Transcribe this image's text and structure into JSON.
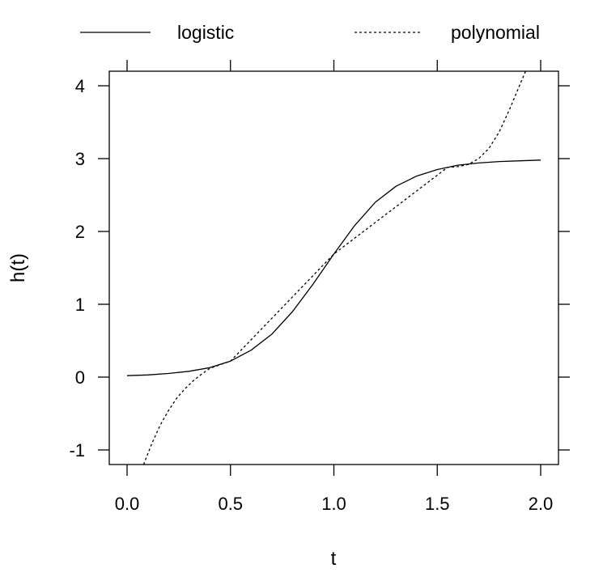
{
  "chart_data": {
    "type": "line",
    "title": "",
    "xlabel": "t",
    "ylabel": "h(t)",
    "xlim": [
      0,
      2
    ],
    "ylim": [
      -1.2,
      4.2
    ],
    "xticks": [
      0,
      0.5,
      1,
      1.5,
      2
    ],
    "xtick_labels": [
      "0.0",
      "0.5",
      "1.0",
      "1.5",
      "2.0"
    ],
    "yticks": [
      -1,
      0,
      1,
      2,
      3,
      4
    ],
    "ytick_labels": [
      "-1",
      "0",
      "1",
      "2",
      "3",
      "4"
    ],
    "grid": false,
    "legend_placement": "top",
    "series": [
      {
        "name": "logistic",
        "style": "solid",
        "color": "#000000",
        "points": [
          [
            0.0,
            0.02
          ],
          [
            0.1,
            0.03
          ],
          [
            0.2,
            0.05
          ],
          [
            0.3,
            0.08
          ],
          [
            0.4,
            0.13
          ],
          [
            0.5,
            0.22
          ],
          [
            0.6,
            0.37
          ],
          [
            0.7,
            0.59
          ],
          [
            0.8,
            0.9
          ],
          [
            0.9,
            1.28
          ],
          [
            1.0,
            1.69
          ],
          [
            1.1,
            2.08
          ],
          [
            1.2,
            2.4
          ],
          [
            1.3,
            2.62
          ],
          [
            1.4,
            2.76
          ],
          [
            1.5,
            2.85
          ],
          [
            1.6,
            2.91
          ],
          [
            1.7,
            2.94
          ],
          [
            1.8,
            2.96
          ],
          [
            1.9,
            2.97
          ],
          [
            2.0,
            2.98
          ]
        ]
      },
      {
        "name": "polynomial",
        "style": "dotted",
        "color": "#000000",
        "points": [
          [
            0.08,
            -1.2
          ],
          [
            0.12,
            -0.91
          ],
          [
            0.16,
            -0.66
          ],
          [
            0.2,
            -0.46
          ],
          [
            0.24,
            -0.29
          ],
          [
            0.28,
            -0.16
          ],
          [
            0.32,
            -0.05
          ],
          [
            0.36,
            0.04
          ],
          [
            0.4,
            0.12
          ],
          [
            0.5,
            0.22
          ],
          [
            1.0,
            1.69
          ],
          [
            1.55,
            2.88
          ],
          [
            1.6,
            2.89
          ],
          [
            1.65,
            2.92
          ],
          [
            1.7,
            3.0
          ],
          [
            1.75,
            3.14
          ],
          [
            1.8,
            3.37
          ],
          [
            1.85,
            3.68
          ],
          [
            1.9,
            4.02
          ],
          [
            1.93,
            4.22
          ]
        ]
      }
    ]
  }
}
